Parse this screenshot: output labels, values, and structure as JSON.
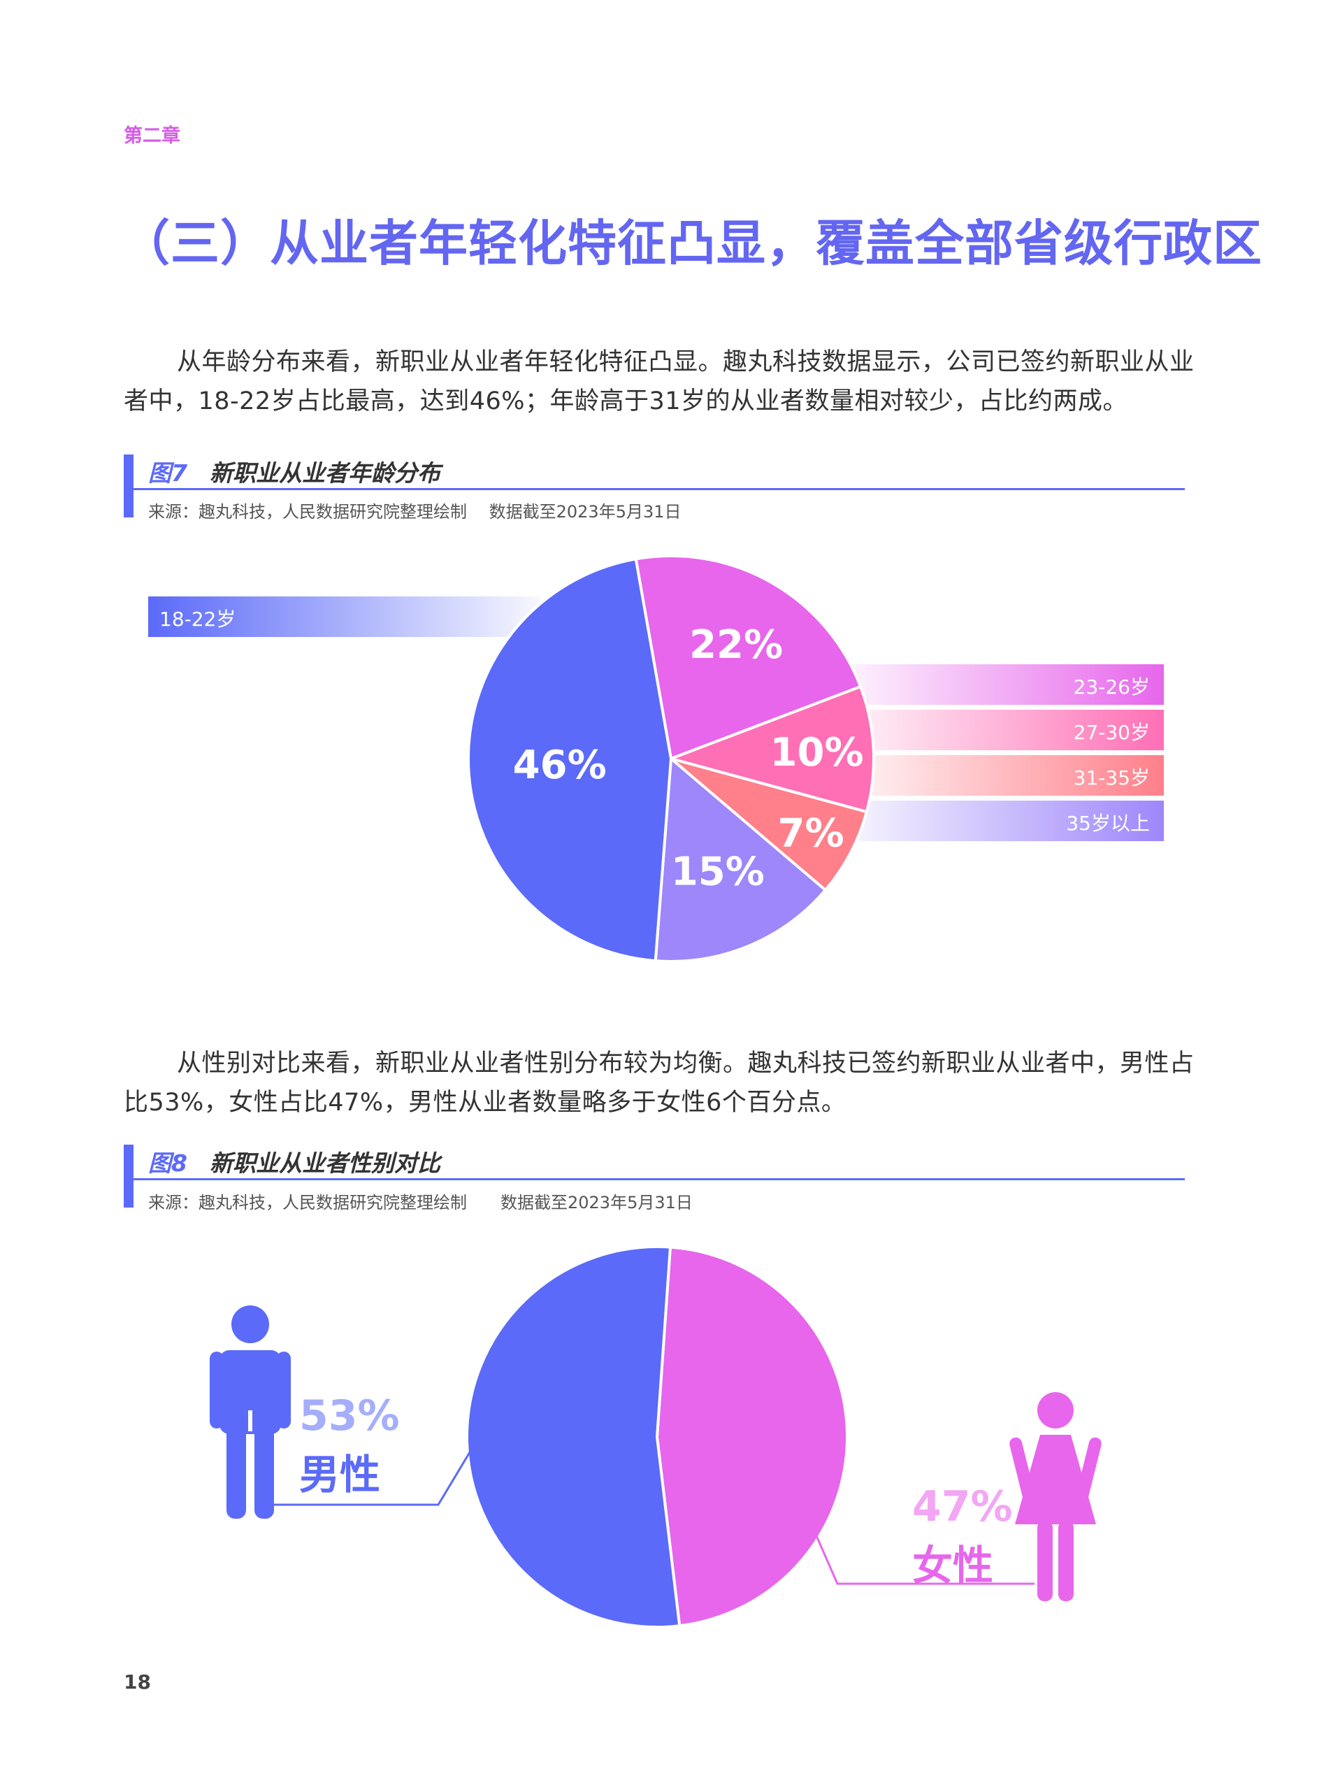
{
  "chapter": "第二章",
  "section_title": "（三）从业者年轻化特征凸显，覆盖全部省级行政区",
  "paragraph1": "从年龄分布来看，新职业从业者年轻化特征凸显。趣丸科技数据显示，公司已签约新职业从业者中，18-22岁占比最高，达到46%；年龄高于31岁的从业者数量相对较少，占比约两成。",
  "figure7": {
    "number": "图7",
    "title": "新职业从业者年龄分布",
    "source": "来源：趣丸科技，人民数据研究院整理绘制　 数据截至2023年5月31日"
  },
  "paragraph2": "从性别对比来看，新职业从业者性别分布较为均衡。趣丸科技已签约新职业从业者中，男性占比53%，女性占比47%，男性从业者数量略多于女性6个百分点。",
  "figure8": {
    "number": "图8",
    "title": "新职业从业者性别对比",
    "source": "来源：趣丸科技，人民数据研究院整理绘制　　数据截至2023年5月31日"
  },
  "page_number": "18",
  "colors": {
    "blue": "#5b6af9",
    "magenta": "#e766ec",
    "pink": "#ff6fb5",
    "salmon": "#ff7f8a",
    "lavender": "#9e86fb"
  },
  "icons": [
    "male-figure-icon",
    "female-figure-icon"
  ],
  "chart_data": [
    {
      "type": "pie",
      "categories": [
        "18-22岁",
        "23-26岁",
        "27-30岁",
        "31-35岁",
        "35岁以上"
      ],
      "values": [
        46,
        22,
        10,
        7,
        15
      ],
      "value_labels": [
        "46%",
        "22%",
        "10%",
        "7%",
        "15%"
      ],
      "colors": [
        "#5b6af9",
        "#e766ec",
        "#ff6fb5",
        "#ff7f8a",
        "#9e86fb"
      ]
    },
    {
      "type": "pie",
      "categories": [
        "男性",
        "女性"
      ],
      "values": [
        53,
        47
      ],
      "value_labels": [
        "53%",
        "47%"
      ],
      "colors": [
        "#5b6af9",
        "#e766ec"
      ]
    }
  ]
}
